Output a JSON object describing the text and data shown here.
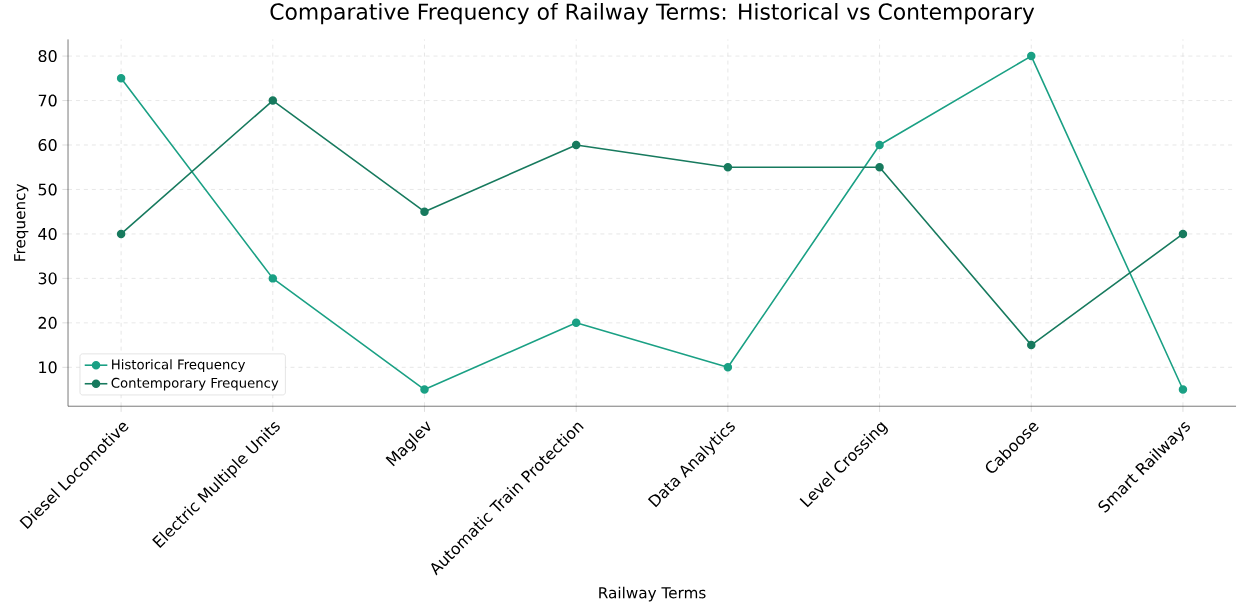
{
  "chart_data": {
    "type": "line",
    "title": "Comparative Frequency of Railway Terms: Historical vs Contemporary",
    "xlabel": "Railway Terms",
    "ylabel": "Frequency",
    "categories": [
      "Diesel Locomotive",
      "Electric Multiple Units",
      "Maglev",
      "Automatic Train Protection",
      "Data Analytics",
      "Level Crossing",
      "Caboose",
      "Smart Railways"
    ],
    "series": [
      {
        "name": "Historical Frequency",
        "color": "#1aa084",
        "values": [
          75,
          30,
          5,
          20,
          10,
          60,
          80,
          5
        ]
      },
      {
        "name": "Contemporary Frequency",
        "color": "#177a5e",
        "values": [
          40,
          70,
          45,
          60,
          55,
          55,
          15,
          40
        ]
      }
    ],
    "ylim": [
      1.25,
      83.75
    ],
    "yticks": [
      10,
      20,
      30,
      40,
      50,
      60,
      70,
      80
    ],
    "grid": true,
    "legend": "bottom left",
    "marker": "circle"
  }
}
